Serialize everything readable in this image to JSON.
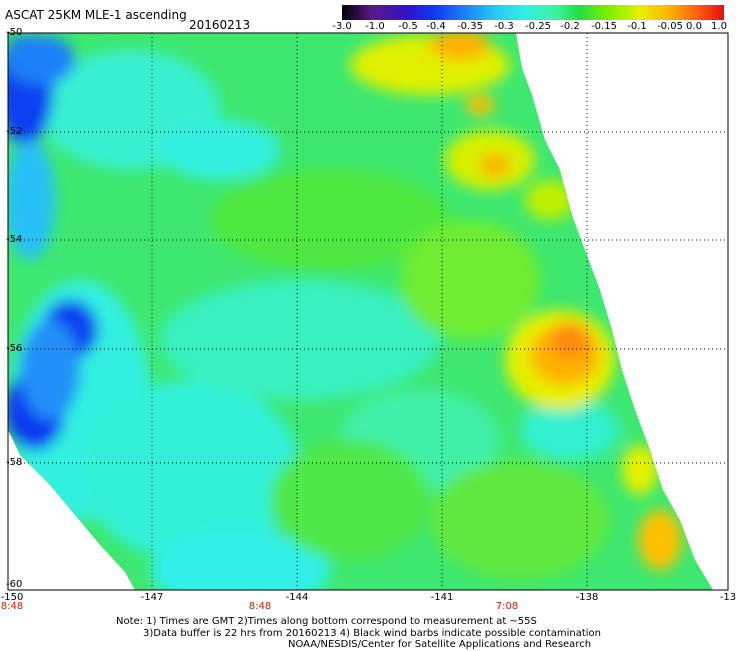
{
  "header": {
    "title": "ASCAT 25KM MLE-1 ascending",
    "date": "20160213"
  },
  "colorbar": {
    "ticks": [
      "-3.0",
      "-1.0",
      "-0.5",
      "-0.4",
      "-0.35",
      "-0.3",
      "-0.25",
      "-0.2",
      "-0.15",
      "-0.1",
      "-0.05",
      "0.0",
      "1.0"
    ],
    "colors": [
      "#000000",
      "#5a1a8a",
      "#3010c8",
      "#1038f0",
      "#1a80f8",
      "#28c8f8",
      "#30f0e0",
      "#40f0a0",
      "#20e040",
      "#80f000",
      "#e8f000",
      "#ffb000",
      "#ff6010",
      "#e01010"
    ]
  },
  "axes": {
    "y_ticks": [
      "-50",
      "-52",
      "-54",
      "-56",
      "-58",
      "-60"
    ],
    "x_ticks": [
      "-150",
      "-147",
      "-144",
      "-141",
      "-138",
      "-13"
    ]
  },
  "pass_times": [
    "8:48",
    "8:48",
    "7:08"
  ],
  "notes": {
    "line1": "Note: 1) Times are GMT 2)Times along bottom correspond to measurement at ~55S",
    "line2": "3)Data buffer is 22 hrs from 20160213 4) Black wind barbs indicate possible contamination",
    "line3": "NOAA/NESDIS/Center for Satellite Applications and Research"
  }
}
